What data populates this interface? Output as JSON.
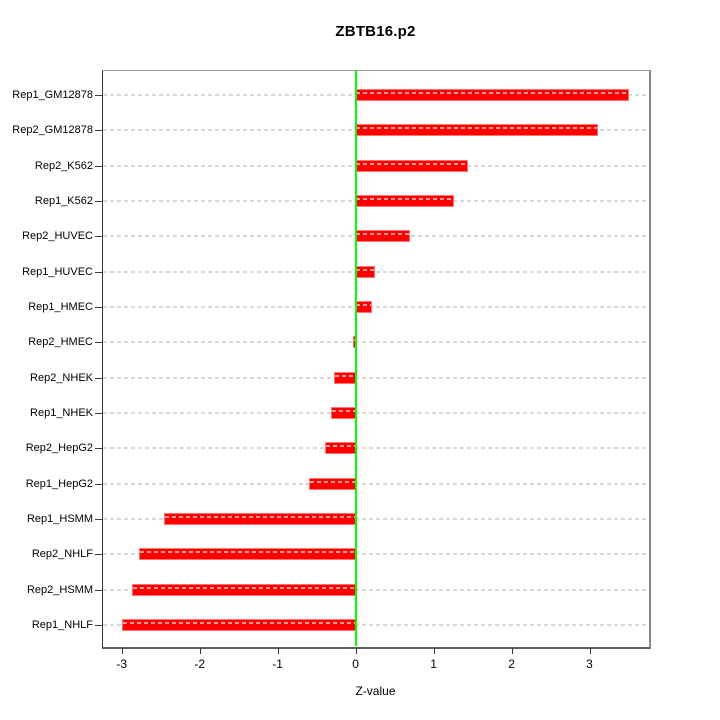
{
  "chart_data": {
    "type": "bar",
    "orientation": "horizontal",
    "title": "ZBTB16.p2",
    "xlabel": "Z-value",
    "ylabel": "",
    "categories": [
      "Rep1_GM12878",
      "Rep2_GM12878",
      "Rep2_K562",
      "Rep1_K562",
      "Rep2_HUVEC",
      "Rep1_HUVEC",
      "Rep1_HMEC",
      "Rep2_HMEC",
      "Rep2_NHEK",
      "Rep1_NHEK",
      "Rep2_HepG2",
      "Rep1_HepG2",
      "Rep1_HSMM",
      "Rep2_NHLF",
      "Rep2_HSMM",
      "Rep1_NHLF"
    ],
    "values": [
      3.5,
      3.1,
      1.43,
      1.25,
      0.68,
      0.23,
      0.2,
      -0.02,
      -0.26,
      -0.3,
      -0.38,
      -0.59,
      -2.45,
      -2.77,
      -2.86,
      -2.98
    ],
    "baseline": 0,
    "xticks": [
      -3,
      -2,
      -1,
      0,
      1,
      2,
      3
    ],
    "xtick_labels": [
      "-3",
      "-2",
      "-1",
      "0",
      "1",
      "2",
      "3"
    ],
    "xlim": [
      -3.24,
      3.75
    ],
    "grid": "dotted horizontal line per category row",
    "legend": null,
    "colors": {
      "bar": "#ff0000",
      "bar_edge": "#ff7373",
      "bar_dash_overlay": "#ffb3b3",
      "zero_line": "#00ff00",
      "grid_dotted": "#d9d9d9",
      "box_border": "#8a8a8a",
      "text": "#000000",
      "background": "#ffffff"
    }
  }
}
